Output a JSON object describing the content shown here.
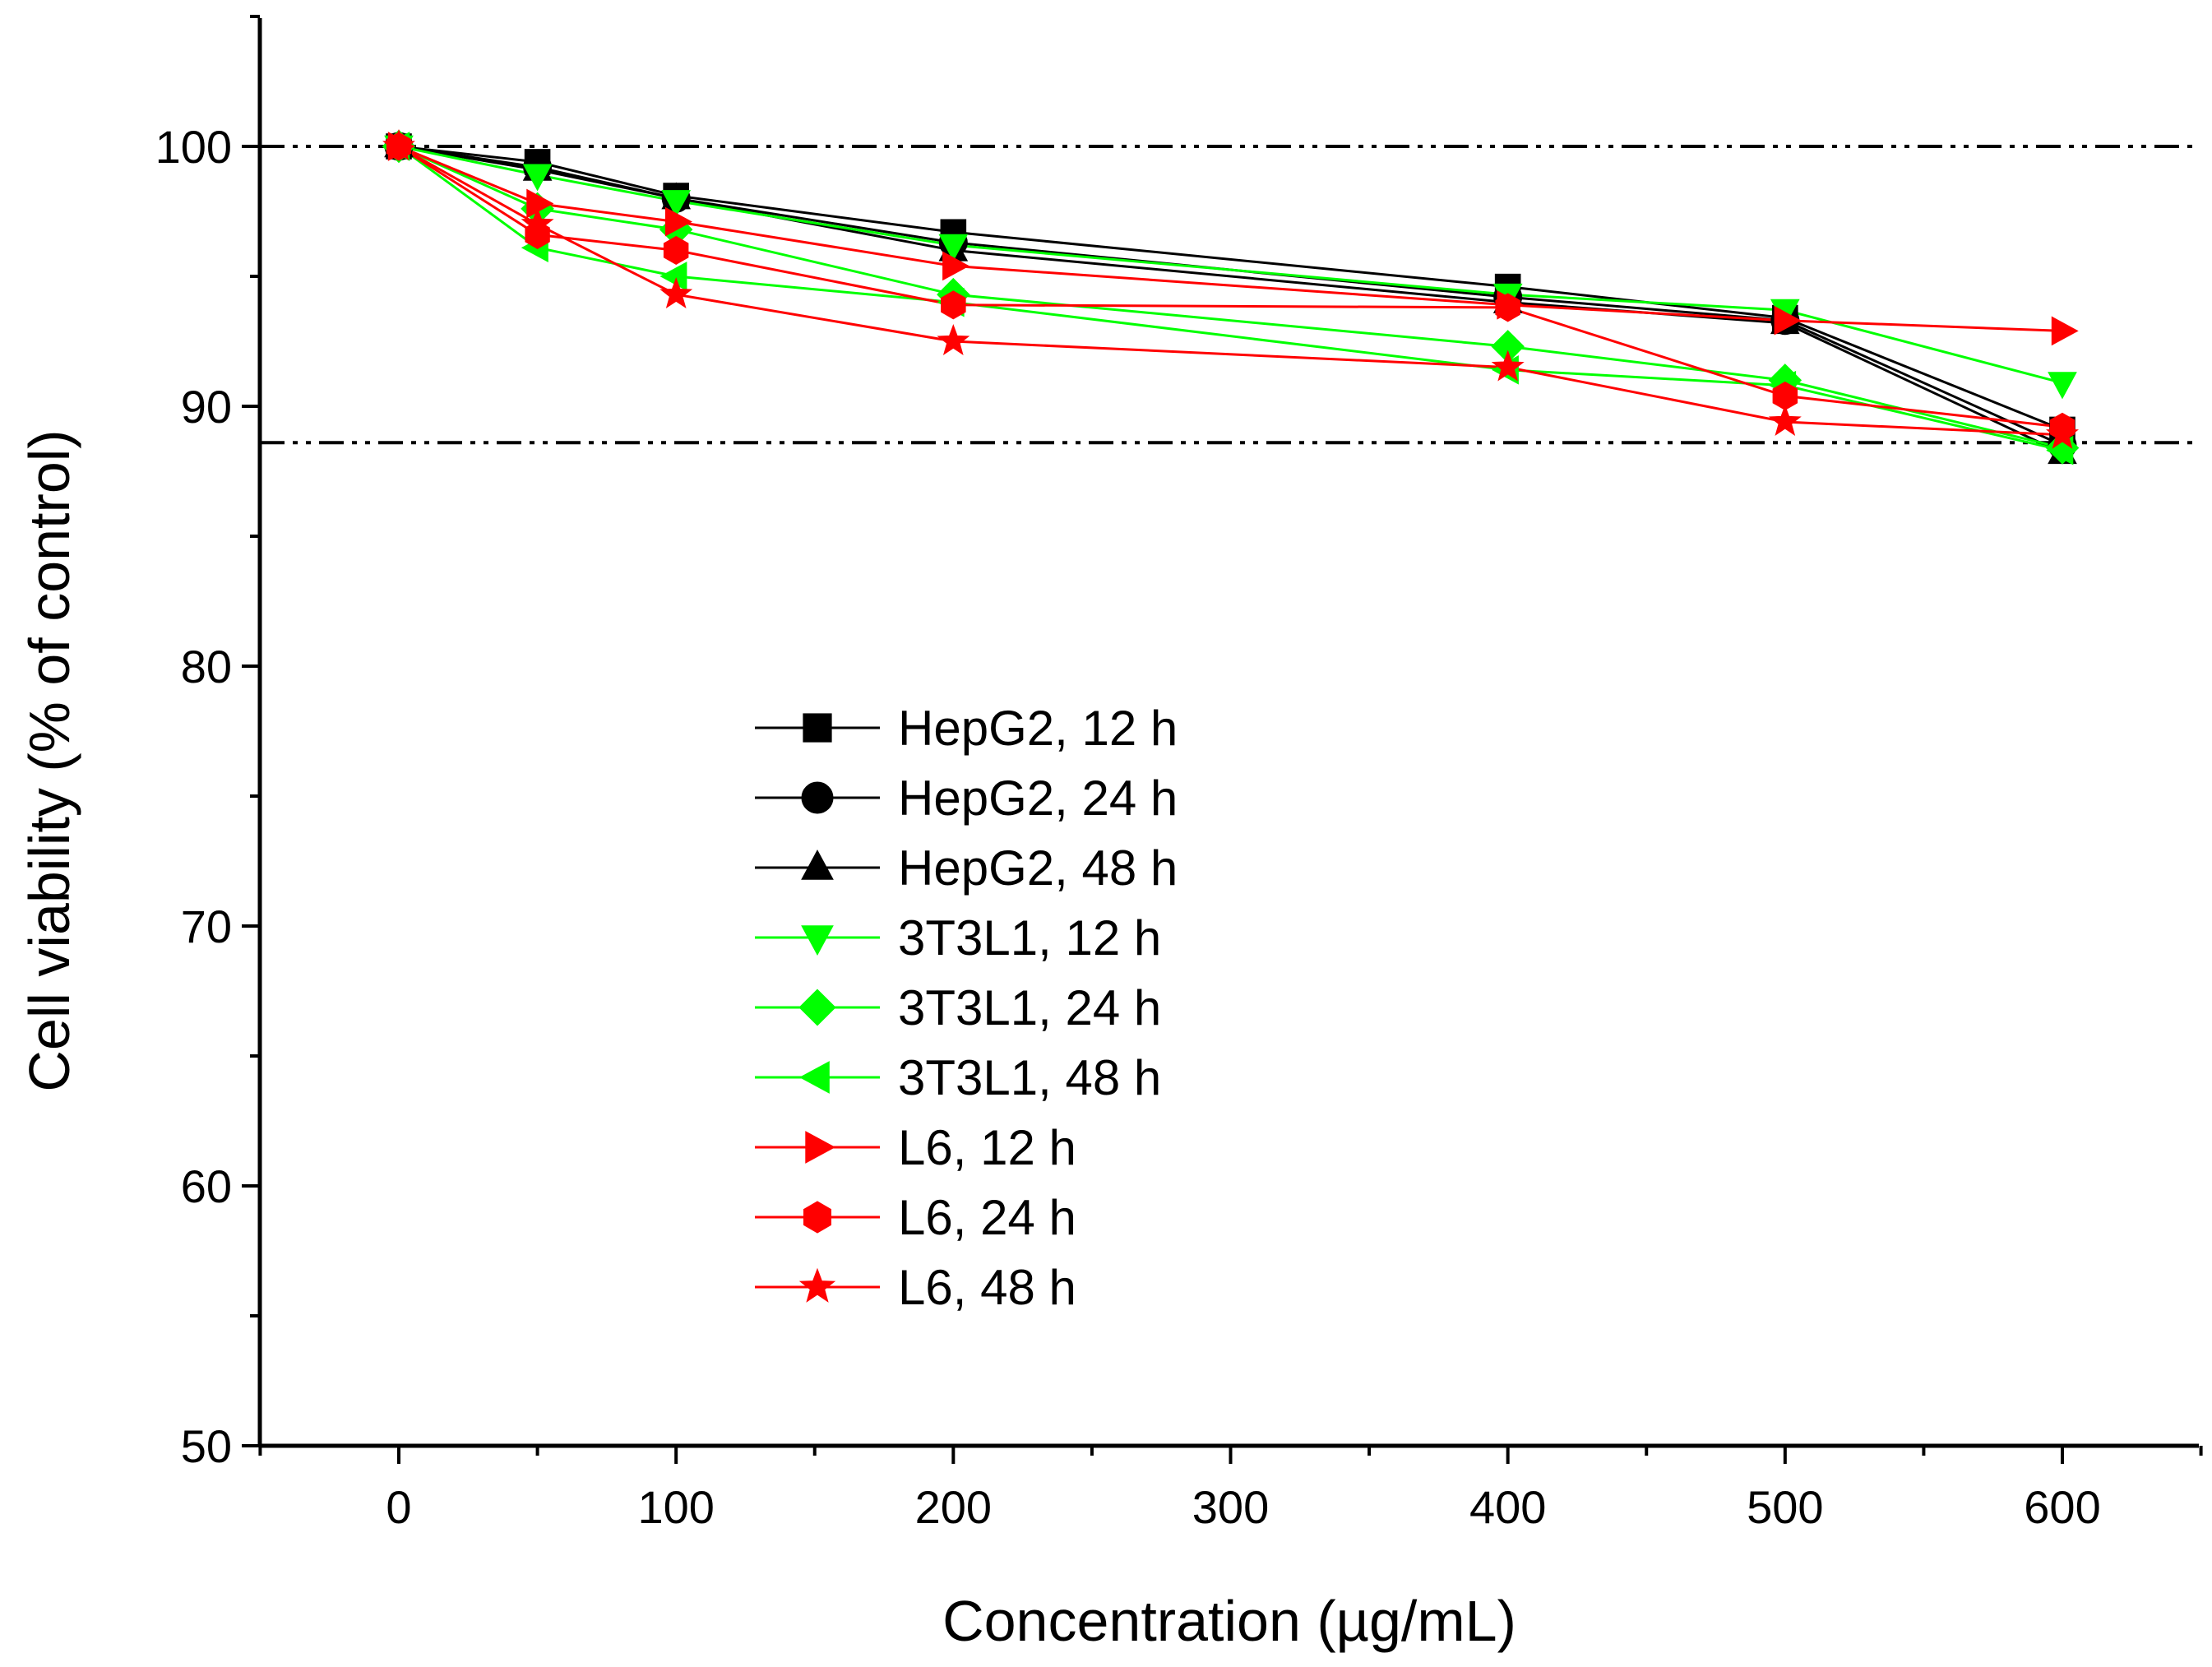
{
  "chart_data": {
    "type": "line",
    "title": "",
    "xlabel": "Concentration (µg/mL)",
    "ylabel": "Cell viability (% of control)",
    "xlim": [
      -50,
      650
    ],
    "ylim": [
      50,
      105
    ],
    "xticks": [
      0,
      100,
      200,
      300,
      400,
      500,
      600
    ],
    "xtick_labels": [
      "0",
      "100",
      "200",
      "300",
      "400",
      "500",
      "600"
    ],
    "xminor": [
      -50,
      50,
      150,
      250,
      350,
      450,
      550,
      650
    ],
    "yticks": [
      50,
      60,
      70,
      80,
      90,
      100
    ],
    "ytick_labels": [
      "50",
      "60",
      "70",
      "80",
      "90",
      "100"
    ],
    "yminor": [
      55,
      65,
      75,
      85,
      95,
      105
    ],
    "grid": false,
    "legend_position": "center-left",
    "reference_lines": [
      100,
      88.6
    ],
    "x": [
      0,
      50,
      100,
      200,
      400,
      500,
      600
    ],
    "series": [
      {
        "name": "HepG2, 12 h",
        "color": "#000000",
        "marker": "square",
        "values": [
          100,
          99.4,
          98.1,
          96.7,
          94.6,
          93.4,
          89.1
        ]
      },
      {
        "name": "HepG2, 24 h",
        "color": "#000000",
        "marker": "circle",
        "values": [
          100,
          99.2,
          98.0,
          96.3,
          94.2,
          93.3,
          88.5
        ]
      },
      {
        "name": "HepG2, 48 h",
        "color": "#000000",
        "marker": "triangle-up",
        "values": [
          100,
          99.1,
          98.0,
          96.0,
          94.0,
          93.2,
          88.2
        ]
      },
      {
        "name": "3T3L1, 12 h",
        "color": "#00ff00",
        "marker": "triangle-down",
        "values": [
          100,
          98.9,
          97.9,
          96.2,
          94.3,
          93.7,
          90.9
        ]
      },
      {
        "name": "3T3L1, 24 h",
        "color": "#00ff00",
        "marker": "diamond",
        "values": [
          100,
          97.6,
          96.8,
          94.3,
          92.3,
          91.0,
          88.4
        ]
      },
      {
        "name": "3T3L1, 48 h",
        "color": "#00ff00",
        "marker": "triangle-left",
        "values": [
          100,
          96.1,
          95.0,
          94.0,
          91.4,
          90.8,
          88.3
        ]
      },
      {
        "name": "L6, 12 h",
        "color": "#ff0000",
        "marker": "triangle-right",
        "values": [
          100,
          97.8,
          97.1,
          95.4,
          93.9,
          93.3,
          92.9
        ]
      },
      {
        "name": "L6, 24 h",
        "color": "#ff0000",
        "marker": "hexagon",
        "values": [
          100,
          96.6,
          96.0,
          93.9,
          93.8,
          90.4,
          89.2
        ]
      },
      {
        "name": "L6, 48 h",
        "color": "#ff0000",
        "marker": "star",
        "values": [
          100,
          97.0,
          94.3,
          92.5,
          91.5,
          89.4,
          88.9
        ]
      }
    ]
  }
}
